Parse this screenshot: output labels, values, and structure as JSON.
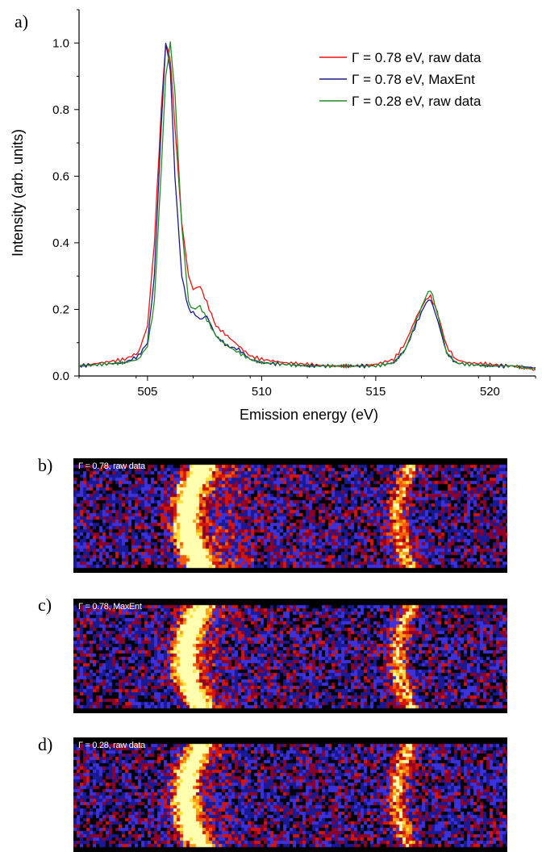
{
  "panel_labels": [
    "a)",
    "b)",
    "c)",
    "d)"
  ],
  "chart_data": {
    "type": "line",
    "xlabel": "Emission energy (eV)",
    "ylabel": "Intensity (arb. units)",
    "xlim": [
      502,
      522
    ],
    "ylim": [
      0,
      1.1
    ],
    "x_ticks": [
      505,
      510,
      515,
      520
    ],
    "y_ticks": [
      0.0,
      0.2,
      0.4,
      0.6,
      0.8,
      1.0
    ],
    "x_tick_labels": [
      "505",
      "510",
      "515",
      "520"
    ],
    "y_tick_labels": [
      "0.0",
      "0.2",
      "0.4",
      "0.6",
      "0.8",
      "1.0"
    ],
    "legend_position": "top-right",
    "series": [
      {
        "name": "Γ = 0.78 eV, raw data",
        "color": "#ee1111",
        "x": [
          502,
          503,
          504,
          504.6,
          505,
          505.3,
          505.6,
          505.8,
          506,
          506.2,
          506.5,
          506.8,
          507,
          507.3,
          507.6,
          508,
          508.5,
          509,
          509.5,
          510,
          511,
          512,
          513,
          514,
          515,
          515.8,
          516.3,
          516.8,
          517.2,
          517.4,
          517.7,
          518.1,
          518.5,
          519,
          520,
          521,
          522
        ],
        "y": [
          0.03,
          0.04,
          0.05,
          0.07,
          0.15,
          0.4,
          0.8,
          1.0,
          0.95,
          0.75,
          0.46,
          0.3,
          0.26,
          0.27,
          0.22,
          0.15,
          0.12,
          0.09,
          0.06,
          0.05,
          0.04,
          0.035,
          0.03,
          0.03,
          0.035,
          0.05,
          0.1,
          0.18,
          0.23,
          0.24,
          0.19,
          0.09,
          0.05,
          0.04,
          0.035,
          0.03,
          0.02
        ]
      },
      {
        "name": "Γ = 0.78 eV, MaxEnt",
        "color": "#1a1a8c",
        "x": [
          502,
          503,
          504,
          504.6,
          505,
          505.3,
          505.6,
          505.8,
          506,
          506.2,
          506.5,
          506.8,
          507,
          507.3,
          507.6,
          508,
          508.5,
          509,
          509.5,
          510,
          511,
          512,
          513,
          514,
          515,
          515.8,
          516.3,
          516.8,
          517.2,
          517.4,
          517.7,
          518.1,
          518.5,
          519,
          520,
          521,
          522
        ],
        "y": [
          0.03,
          0.035,
          0.04,
          0.06,
          0.1,
          0.3,
          0.75,
          1.0,
          0.92,
          0.6,
          0.3,
          0.2,
          0.19,
          0.17,
          0.18,
          0.12,
          0.09,
          0.08,
          0.05,
          0.04,
          0.035,
          0.03,
          0.03,
          0.03,
          0.03,
          0.04,
          0.08,
          0.16,
          0.22,
          0.23,
          0.17,
          0.07,
          0.04,
          0.035,
          0.03,
          0.03,
          0.025
        ]
      },
      {
        "name": "Γ = 0.28 eV, raw data",
        "color": "#238c23",
        "x": [
          502,
          503,
          504,
          504.6,
          505,
          505.3,
          505.6,
          505.8,
          506,
          506.2,
          506.5,
          506.8,
          507,
          507.3,
          507.6,
          508,
          508.5,
          509,
          509.5,
          510,
          511,
          512,
          513,
          514,
          515,
          515.8,
          516.3,
          516.8,
          517.2,
          517.4,
          517.7,
          518.1,
          518.5,
          519,
          520,
          521,
          522
        ],
        "y": [
          0.03,
          0.035,
          0.04,
          0.05,
          0.09,
          0.22,
          0.62,
          0.9,
          1.0,
          0.85,
          0.45,
          0.22,
          0.2,
          0.21,
          0.17,
          0.12,
          0.09,
          0.07,
          0.05,
          0.04,
          0.035,
          0.03,
          0.03,
          0.03,
          0.03,
          0.04,
          0.08,
          0.17,
          0.24,
          0.26,
          0.19,
          0.07,
          0.04,
          0.035,
          0.03,
          0.03,
          0.02
        ]
      }
    ]
  },
  "images": [
    {
      "caption": "Γ = 0.78, raw data",
      "broad": 1.0
    },
    {
      "caption": "Γ = 0.78, MaxEnt",
      "broad": 0.75
    },
    {
      "caption": "Γ = 0.28, raw data",
      "broad": 0.65
    }
  ]
}
